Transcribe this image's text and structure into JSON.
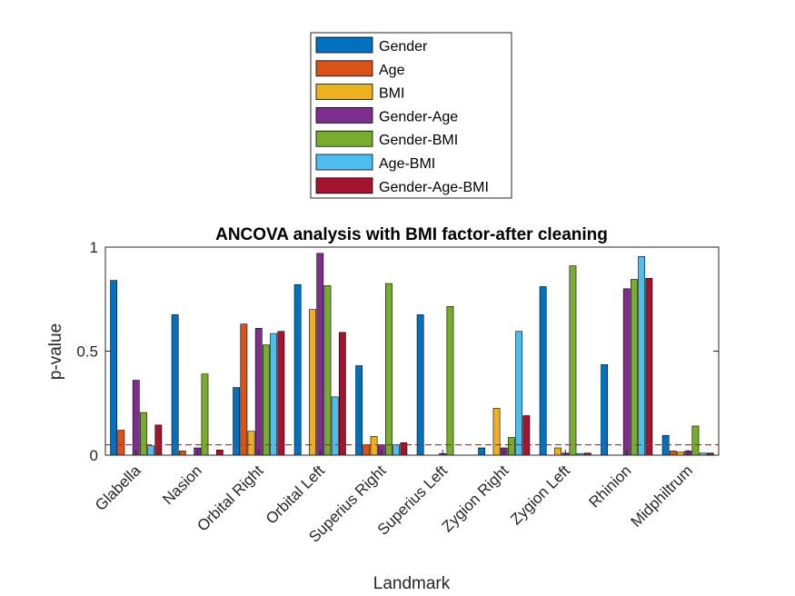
{
  "chart_data": {
    "type": "bar",
    "title": "ANCOVA analysis with BMI factor-after cleaning",
    "xlabel": "Landmark",
    "ylabel": "p-value",
    "ylim": [
      0,
      1
    ],
    "yticks": [
      0,
      0.5,
      1
    ],
    "ytick_labels": [
      "0",
      "0.5",
      "1"
    ],
    "categories": [
      "Glabella",
      "Nasion",
      "Orbital Right",
      "Orbital Left",
      "Superius Right",
      "Superius Left",
      "Zygion Right",
      "Zygion Left",
      "Rhinion",
      "Midphiltrum"
    ],
    "legend_placement": "top-center (outside axes)",
    "threshold": {
      "value": 0.05,
      "style": "dashed",
      "color": "#ff0000"
    },
    "series": [
      {
        "name": "Gender",
        "color": "#0072bd",
        "values": [
          0.84,
          0.675,
          0.325,
          0.82,
          0.43,
          0.675,
          0.035,
          0.81,
          0.435,
          0.095
        ]
      },
      {
        "name": "Age",
        "color": "#d95319",
        "values": [
          0.12,
          0.02,
          0.63,
          0.0,
          0.05,
          0.0,
          0.0,
          0.0,
          0.0,
          0.02
        ]
      },
      {
        "name": "BMI",
        "color": "#edb120",
        "values": [
          0.0,
          0.0,
          0.115,
          0.7,
          0.09,
          0.0,
          0.225,
          0.035,
          0.0,
          0.015
        ]
      },
      {
        "name": "Gender-Age",
        "color": "#7e2f8e",
        "values": [
          0.36,
          0.035,
          0.61,
          0.97,
          0.05,
          0.008,
          0.035,
          0.01,
          0.8,
          0.02
        ]
      },
      {
        "name": "Gender-BMI",
        "color": "#77ac30",
        "values": [
          0.205,
          0.39,
          0.53,
          0.815,
          0.825,
          0.715,
          0.085,
          0.91,
          0.845,
          0.14
        ]
      },
      {
        "name": "Age-BMI",
        "color": "#4dbeee",
        "values": [
          0.045,
          0.0,
          0.585,
          0.28,
          0.05,
          0.0,
          0.595,
          0.008,
          0.955,
          0.01
        ]
      },
      {
        "name": "Gender-Age-BMI",
        "color": "#a2142f",
        "values": [
          0.145,
          0.025,
          0.595,
          0.59,
          0.06,
          0.0,
          0.19,
          0.01,
          0.85,
          0.01
        ]
      }
    ]
  }
}
